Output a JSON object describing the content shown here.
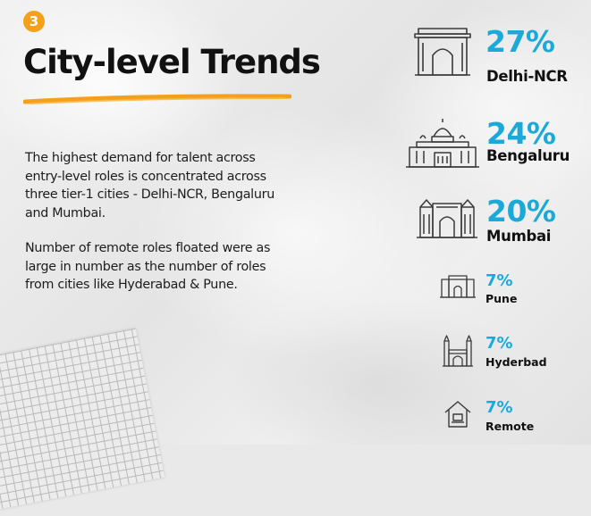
{
  "section_number": "3",
  "title": "City-level Trends",
  "paragraphs": [
    "The highest demand for talent across entry-level roles is concentrated across three tier-1 cities - Delhi-NCR, Bengaluru and Mumbai.",
    "Number of remote roles floated were as large in number as the number of roles from cities like Hyderabad & Pune."
  ],
  "colors": {
    "accent_orange": "#f5a01a",
    "percent_blue": "#1aa9d9",
    "text_dark": "#111111"
  },
  "stats": [
    {
      "percent": "27%",
      "city": "Delhi-NCR",
      "icon": "india-gate-icon"
    },
    {
      "percent": "24%",
      "city": "Bengaluru",
      "icon": "vidhana-soudha-icon"
    },
    {
      "percent": "20%",
      "city": "Mumbai",
      "icon": "gateway-of-india-icon"
    },
    {
      "percent": "7%",
      "city": "Pune",
      "icon": "shaniwar-wada-icon"
    },
    {
      "percent": "7%",
      "city": "Hyderbad",
      "icon": "charminar-icon"
    },
    {
      "percent": "7%",
      "city": "Remote",
      "icon": "home-work-icon"
    }
  ]
}
